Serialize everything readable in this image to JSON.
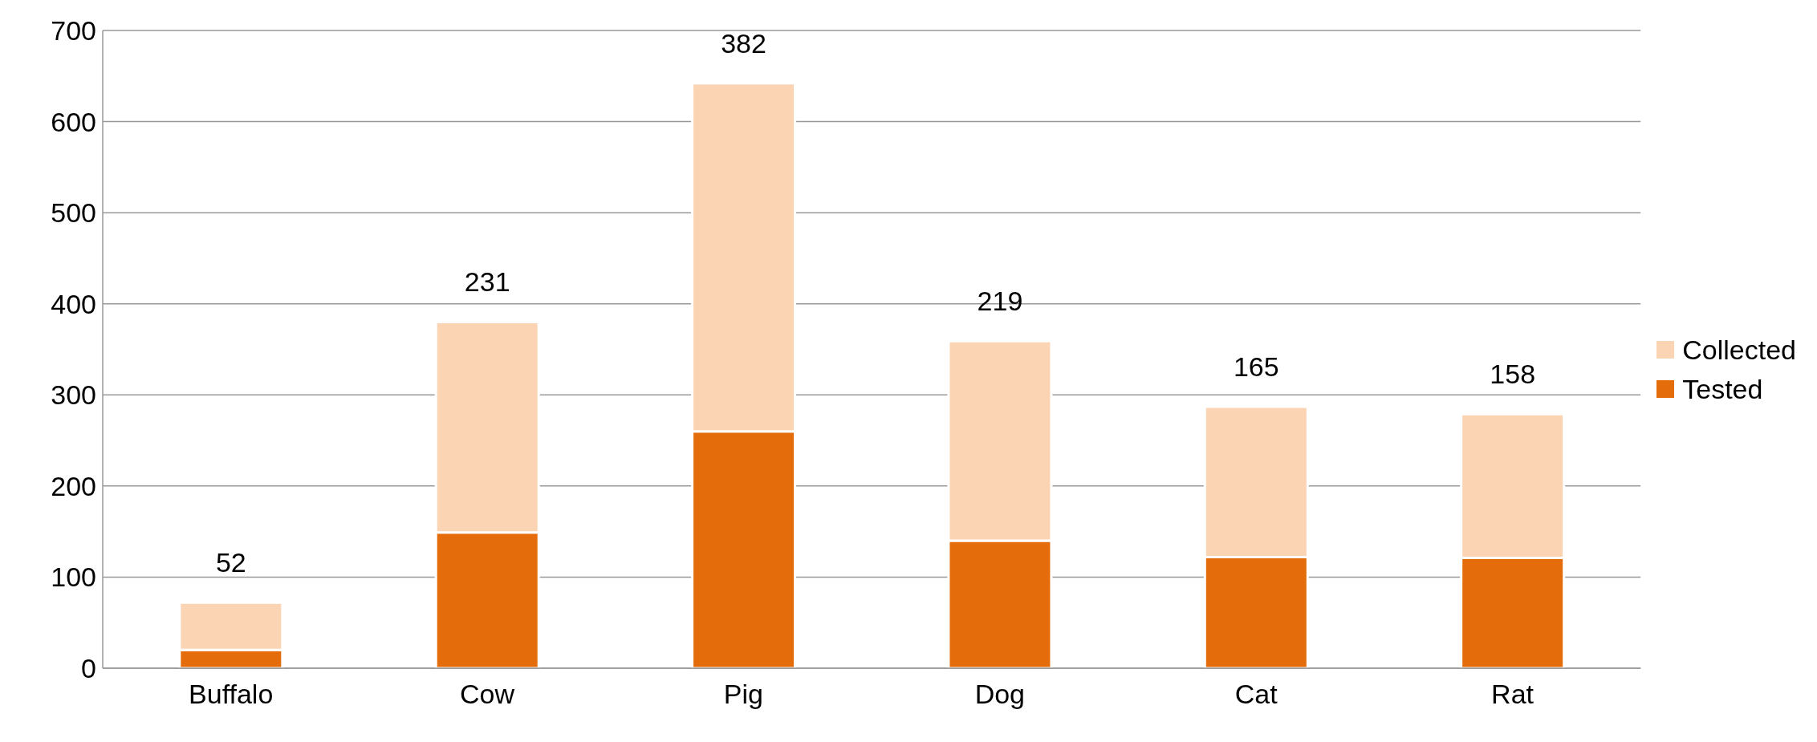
{
  "chart_data": {
    "type": "bar",
    "stacked": true,
    "categories": [
      "Buffalo",
      "Cow",
      "Pig",
      "Dog",
      "Cat",
      "Rat"
    ],
    "series": [
      {
        "name": "Tested",
        "color": "#e46c0a",
        "values": [
          20,
          149,
          260,
          140,
          122,
          121
        ]
      },
      {
        "name": "Collected",
        "color": "#fbd4b4",
        "values": [
          52,
          231,
          382,
          219,
          165,
          158
        ],
        "value_labels": [
          "52",
          "231",
          "382",
          "219",
          "165",
          "158"
        ]
      }
    ],
    "ylim": [
      0,
      700
    ],
    "yticks": [
      0,
      100,
      200,
      300,
      400,
      500,
      600,
      700
    ],
    "grid": "y",
    "legend": "right"
  }
}
